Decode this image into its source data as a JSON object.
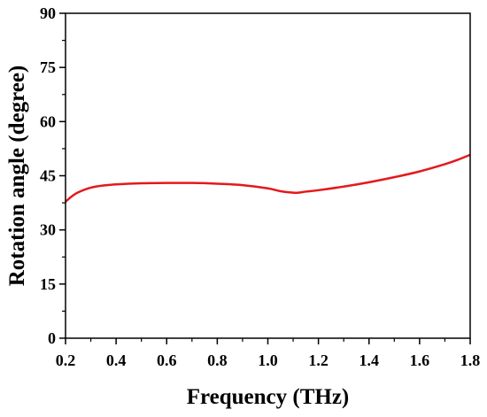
{
  "chart_data": {
    "type": "line",
    "xlabel": "Frequency (THz)",
    "ylabel": "Rotation angle (degree)",
    "xlim": [
      0.2,
      1.8
    ],
    "ylim": [
      0,
      90
    ],
    "xticks": [
      "0.2",
      "0.4",
      "0.6",
      "0.8",
      "1.0",
      "1.2",
      "1.4",
      "1.6",
      "1.8"
    ],
    "yticks": [
      "0",
      "15",
      "30",
      "45",
      "60",
      "75",
      "90"
    ],
    "grid": false,
    "legend": "none",
    "series": [
      {
        "color": "#e3191c",
        "x": [
          0.2,
          0.225,
          0.25,
          0.3,
          0.35,
          0.4,
          0.5,
          0.6,
          0.7,
          0.8,
          0.9,
          1.0,
          1.05,
          1.1,
          1.12,
          1.15,
          1.2,
          1.3,
          1.4,
          1.5,
          1.6,
          1.7,
          1.75,
          1.8
        ],
        "y": [
          37.8,
          39.3,
          40.4,
          41.7,
          42.3,
          42.6,
          42.9,
          43.0,
          43.0,
          42.8,
          42.4,
          41.5,
          40.7,
          40.3,
          40.3,
          40.6,
          41.0,
          42.0,
          43.2,
          44.6,
          46.2,
          48.2,
          49.4,
          50.8
        ]
      }
    ]
  }
}
